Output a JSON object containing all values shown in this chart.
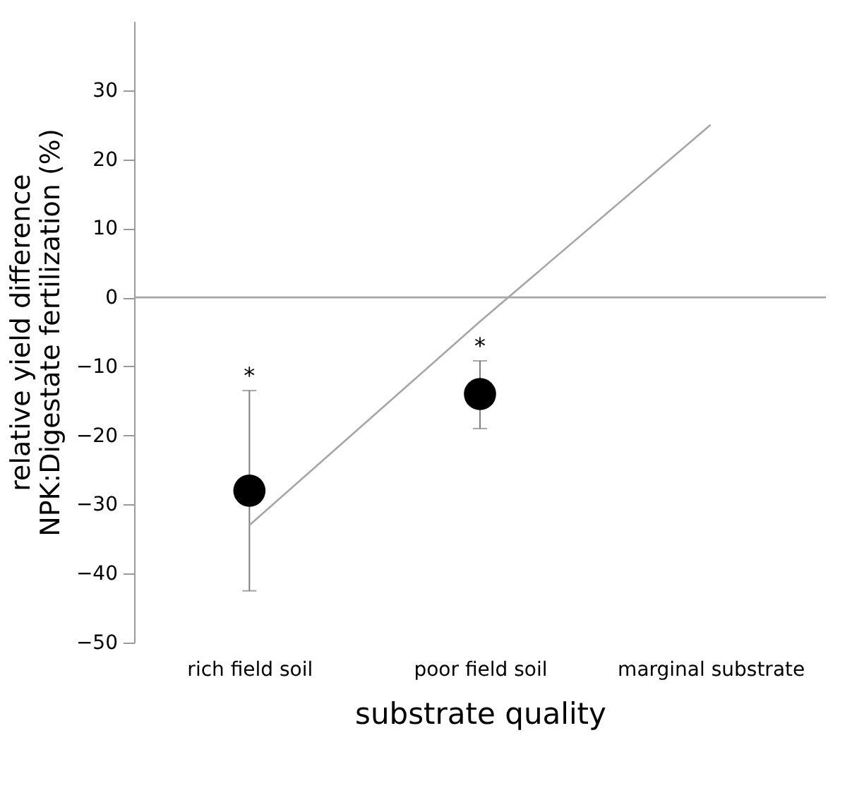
{
  "chart_data": {
    "type": "scatter",
    "xlabel": "substrate quality",
    "ylabel": "relative yield difference\nNPK:Digestate fertilization (%)",
    "categories": [
      "rich field soil",
      "poor field soil",
      "marginal substrate"
    ],
    "series": [
      {
        "color": "#000000",
        "marker": "circle",
        "values": [
          -28,
          -14,
          null
        ],
        "errors": [
          [
            -42.5,
            -13.5
          ],
          [
            -19,
            -9.2
          ],
          null
        ]
      },
      {
        "type": "line",
        "color": "#a6a6a6",
        "values": [
          -33,
          -3.5,
          25
        ]
      }
    ],
    "ylim": [
      -50,
      40
    ],
    "yticks": [
      -50,
      -40,
      -30,
      -20,
      -10,
      0,
      10,
      20,
      30
    ],
    "ref_lines": [
      {
        "axis": "y",
        "value": 0,
        "color": "#a6a6a6"
      }
    ],
    "annotations": [
      {
        "text": "*",
        "x": "rich field soil",
        "y": -13.5
      },
      {
        "text": "*",
        "x": "poor field soil",
        "y": -9.2
      }
    ],
    "grid": false
  }
}
